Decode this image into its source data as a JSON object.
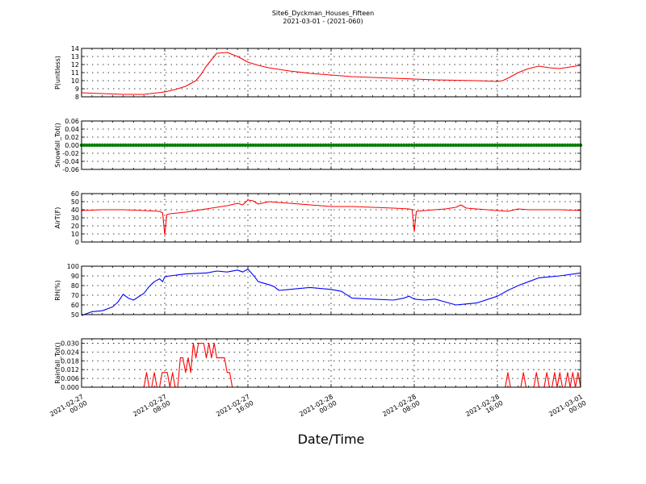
{
  "figure": {
    "title_line1": "Site6_Dyckman_Houses_Fifteen",
    "title_line2": "2021-03-01 - (2021-060)",
    "xlabel": "Date/Time",
    "x_ticks": [
      "2021-02-27\n00:00",
      "2021-02-27\n08:00",
      "2021-02-27\n16:00",
      "2021-02-28\n00:00",
      "2021-02-28\n08:00",
      "2021-02-28\n16:00",
      "2021-03-01\n00:00"
    ]
  },
  "chart_data": [
    {
      "type": "line",
      "ylabel": "P(unitless)",
      "ylim": [
        8,
        14
      ],
      "yticks": [
        8,
        9,
        10,
        11,
        12,
        13,
        14
      ],
      "tick_decimals": 0,
      "grid": true,
      "series": [
        {
          "color": "#ff0000",
          "x": [
            0,
            2,
            4,
            6,
            8,
            9,
            10,
            11,
            11.5,
            12,
            13,
            14,
            15,
            16,
            17,
            18,
            20,
            22,
            24,
            26,
            28,
            30,
            32,
            34,
            36,
            38,
            40,
            40.5,
            41,
            42,
            43,
            44,
            45,
            46,
            47,
            48
          ],
          "y": [
            8.5,
            8.4,
            8.3,
            8.3,
            8.6,
            8.9,
            9.3,
            10.0,
            10.8,
            11.8,
            13.4,
            13.5,
            13.0,
            12.3,
            11.9,
            11.6,
            11.2,
            10.9,
            10.7,
            10.5,
            10.4,
            10.3,
            10.2,
            10.1,
            10.05,
            10.0,
            9.9,
            10.0,
            10.3,
            11.0,
            11.5,
            11.8,
            11.6,
            11.5,
            11.7,
            11.9
          ]
        }
      ]
    },
    {
      "type": "line",
      "ylabel": "Snowfall_Tot()",
      "ylim": [
        -0.06,
        0.06
      ],
      "yticks": [
        -0.06,
        -0.04,
        -0.02,
        0.0,
        0.02,
        0.04,
        0.06
      ],
      "tick_decimals": 2,
      "grid": true,
      "series": [
        {
          "color": "#008000",
          "marker": "dot",
          "x_start": 0,
          "x_end": 48,
          "x_step": 0.25,
          "constant": 0.0
        }
      ]
    },
    {
      "type": "line",
      "ylabel": "AirT(F)",
      "ylim": [
        0,
        60
      ],
      "yticks": [
        0,
        10,
        20,
        30,
        40,
        50,
        60
      ],
      "tick_decimals": 0,
      "grid": true,
      "series": [
        {
          "color": "#ff0000",
          "x": [
            0,
            2,
            4,
            6,
            7.5,
            7.8,
            8.0,
            8.2,
            8.5,
            10,
            12,
            14,
            15,
            15.5,
            16,
            16.5,
            17,
            18,
            20,
            22,
            24,
            26,
            28,
            30,
            31.5,
            31.8,
            32.0,
            32.2,
            33,
            34,
            35,
            36,
            36.5,
            37,
            38,
            39,
            40,
            41,
            42,
            43,
            44,
            46,
            48
          ],
          "y": [
            39,
            40,
            40,
            39,
            38,
            36,
            9,
            34,
            35,
            37,
            41,
            45,
            48,
            46,
            52,
            51,
            47,
            50,
            48,
            46,
            44,
            44,
            43,
            42,
            41,
            40,
            13,
            38,
            39,
            40,
            41,
            43,
            46,
            42,
            41,
            40,
            39,
            38,
            41,
            40,
            40,
            40,
            39
          ]
        }
      ]
    },
    {
      "type": "line",
      "ylabel": "RH(%)",
      "ylim": [
        50,
        100
      ],
      "yticks": [
        50,
        60,
        70,
        80,
        90,
        100
      ],
      "tick_decimals": 0,
      "grid": true,
      "series": [
        {
          "color": "#0000ff",
          "x": [
            0,
            1,
            2,
            3,
            3.5,
            4,
            4.5,
            5,
            6,
            6.5,
            7,
            7.5,
            7.8,
            8,
            8.5,
            10,
            12,
            13,
            14,
            15,
            15.5,
            16,
            16.5,
            17,
            18,
            18.5,
            19,
            20,
            21,
            22,
            24,
            25,
            26,
            28,
            30,
            31,
            31.5,
            32,
            33,
            34,
            35,
            36,
            37,
            38,
            40,
            41,
            42,
            43,
            44,
            45,
            46,
            48
          ],
          "y": [
            49,
            53,
            54,
            58,
            63,
            71,
            67,
            65,
            72,
            79,
            84,
            87,
            84,
            89,
            90,
            92,
            93,
            95,
            94,
            96,
            94,
            97,
            91,
            84,
            81,
            79,
            75,
            76,
            77,
            78,
            76,
            74,
            67,
            66,
            65,
            67,
            69,
            66,
            65,
            66,
            63,
            60,
            61,
            62,
            69,
            75,
            80,
            84,
            88,
            89,
            90,
            93
          ]
        }
      ]
    },
    {
      "type": "line",
      "ylabel": "Rainfall_Tot()",
      "ylim": [
        0.0,
        0.033
      ],
      "yticks": [
        0.0,
        0.006,
        0.012,
        0.018,
        0.024,
        0.03
      ],
      "tick_decimals": 3,
      "grid": true,
      "series": [
        {
          "color": "#ff0000",
          "x": [
            0,
            6.0,
            6.25,
            6.5,
            6.75,
            7.0,
            7.25,
            7.5,
            7.75,
            8.0,
            8.25,
            8.5,
            8.75,
            9.0,
            9.25,
            9.5,
            9.75,
            10.0,
            10.25,
            10.5,
            10.75,
            11.0,
            11.25,
            11.5,
            11.75,
            12.0,
            12.25,
            12.5,
            12.75,
            13.0,
            13.25,
            13.5,
            13.75,
            14.0,
            14.25,
            14.5,
            14.75,
            15.0,
            15.25,
            15.5,
            40.75,
            41.0,
            41.25,
            42.25,
            42.5,
            42.75,
            43.5,
            43.75,
            44.0,
            44.5,
            44.75,
            45.0,
            45.25,
            45.5,
            45.75,
            46.0,
            46.25,
            46.5,
            46.75,
            47.0,
            47.25,
            47.5,
            47.75,
            48.0
          ],
          "y": [
            0,
            0,
            0.01,
            0,
            0,
            0.01,
            0,
            0,
            0.01,
            0.01,
            0.01,
            0,
            0.01,
            0,
            0,
            0.02,
            0.02,
            0.01,
            0.02,
            0.01,
            0.03,
            0.02,
            0.03,
            0.03,
            0.03,
            0.02,
            0.03,
            0.02,
            0.03,
            0.02,
            0.02,
            0.02,
            0.02,
            0.01,
            0.01,
            0,
            0,
            0,
            0,
            0,
            0,
            0.01,
            0,
            0,
            0.01,
            0,
            0,
            0.01,
            0,
            0,
            0.01,
            0,
            0,
            0.01,
            0,
            0.01,
            0,
            0,
            0.01,
            0,
            0.01,
            0,
            0.01,
            0
          ]
        }
      ]
    }
  ]
}
